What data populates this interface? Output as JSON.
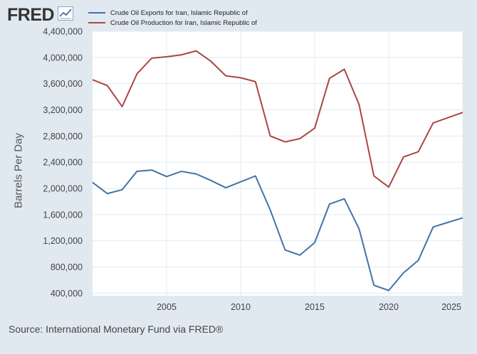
{
  "header": {
    "logo_text": "FRED",
    "logo_icon": "chart-line-icon"
  },
  "legend": [
    {
      "label": "Crude Oil Exports for Iran, Islamic Republic of",
      "color": "#4572a7"
    },
    {
      "label": "Crude Oil Production for Iran, Islamic Republic of",
      "color": "#aa4643"
    }
  ],
  "footer": {
    "source": "Source: International Monetary Fund via FRED®"
  },
  "chart_data": {
    "type": "line",
    "title": "",
    "xlabel": "",
    "ylabel": "Barrels Per Day",
    "xlim": [
      2000,
      2025
    ],
    "ylim": [
      360000,
      4400000
    ],
    "x_ticks": [
      2005,
      2010,
      2015,
      2020,
      2025
    ],
    "y_ticks": [
      400000,
      800000,
      1200000,
      1600000,
      2000000,
      2400000,
      2800000,
      3200000,
      3600000,
      4000000,
      4400000
    ],
    "y_tick_labels": [
      "400,000",
      "800,000",
      "1,200,000",
      "1,600,000",
      "2,000,000",
      "2,400,000",
      "2,800,000",
      "3,200,000",
      "3,600,000",
      "4,000,000",
      "4,400,000"
    ],
    "x_tick_labels": [
      "2005",
      "2010",
      "2015",
      "2020",
      "2025"
    ],
    "grid": true,
    "x": [
      2000,
      2001,
      2002,
      2003,
      2004,
      2005,
      2006,
      2007,
      2008,
      2009,
      2010,
      2011,
      2012,
      2013,
      2014,
      2015,
      2016,
      2017,
      2018,
      2019,
      2020,
      2021,
      2022,
      2023,
      2024,
      2025
    ],
    "series": [
      {
        "name": "Crude Oil Exports for Iran, Islamic Republic of",
        "color": "#4572a7",
        "values": [
          2090000,
          1920000,
          1980000,
          2260000,
          2280000,
          2180000,
          2260000,
          2220000,
          2120000,
          2010000,
          2100000,
          2190000,
          1670000,
          1060000,
          980000,
          1170000,
          1760000,
          1840000,
          1380000,
          520000,
          440000,
          710000,
          900000,
          1410000,
          1480000,
          1550000
        ]
      },
      {
        "name": "Crude Oil Production for Iran, Islamic Republic of",
        "color": "#aa4643",
        "values": [
          3660000,
          3570000,
          3250000,
          3750000,
          3990000,
          4010000,
          4040000,
          4100000,
          3940000,
          3720000,
          3690000,
          3630000,
          2800000,
          2710000,
          2760000,
          2920000,
          3680000,
          3820000,
          3280000,
          2190000,
          2020000,
          2480000,
          2560000,
          3000000,
          3080000,
          3160000
        ]
      }
    ]
  }
}
